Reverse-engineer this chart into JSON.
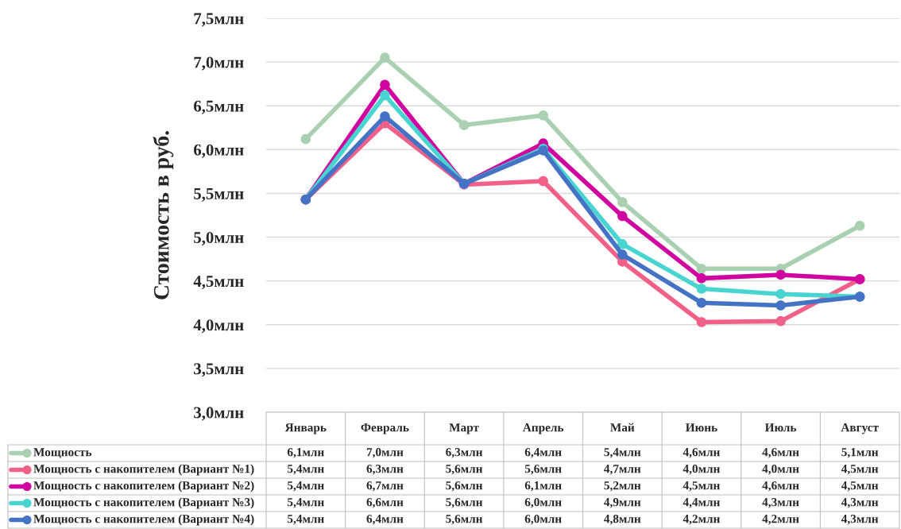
{
  "chart_data": {
    "type": "line",
    "ylabel": "Стоимость в руб.",
    "categories": [
      "Январь",
      "Февраль",
      "Март",
      "Апрель",
      "Май",
      "Июнь",
      "Июль",
      "Август"
    ],
    "series": [
      {
        "name": "Мощность",
        "color": "#a9d0b0",
        "values": [
          6.12,
          7.05,
          6.28,
          6.39,
          5.4,
          4.64,
          4.64,
          5.13
        ],
        "value_labels": [
          "6,1млн",
          "7,0млн",
          "6,3млн",
          "6,4млн",
          "5,4млн",
          "4,6млн",
          "4,6млн",
          "5,1млн"
        ]
      },
      {
        "name": "Мощность с накопителем (Вариант №1)",
        "color": "#f06088",
        "values": [
          5.43,
          6.3,
          5.6,
          5.64,
          4.72,
          4.03,
          4.04,
          4.52
        ],
        "value_labels": [
          "5,4млн",
          "6,3млн",
          "5,6млн",
          "5,6млн",
          "4,7млн",
          "4,0млн",
          "4,0млн",
          "4,5млн"
        ]
      },
      {
        "name": "Мощность с накопителем (Вариант №2)",
        "color": "#d0049e",
        "values": [
          5.43,
          6.74,
          5.61,
          6.07,
          5.24,
          4.53,
          4.57,
          4.52
        ],
        "value_labels": [
          "5,4млн",
          "6,7млн",
          "5,6млн",
          "6,1млн",
          "5,2млн",
          "4,5млн",
          "4,6млн",
          "4,5млн"
        ]
      },
      {
        "name": "Мощность с накопителем (Вариант №3)",
        "color": "#48d4d0",
        "values": [
          5.43,
          6.62,
          5.61,
          6.01,
          4.92,
          4.41,
          4.35,
          4.32
        ],
        "value_labels": [
          "5,4млн",
          "6,6млн",
          "5,6млн",
          "6,0млн",
          "4,9млн",
          "4,4млн",
          "4,3млн",
          "4,3млн"
        ]
      },
      {
        "name": "Мощность с накопителем (Вариант №4)",
        "color": "#4472c4",
        "values": [
          5.43,
          6.38,
          5.61,
          5.99,
          4.8,
          4.25,
          4.22,
          4.32
        ],
        "value_labels": [
          "5,4млн",
          "6,4млн",
          "5,6млн",
          "6,0млн",
          "4,8млн",
          "4,2млн",
          "4,2млн",
          "4,3млн"
        ]
      }
    ],
    "ylim": [
      3.0,
      7.5
    ],
    "yticks": [
      {
        "value": 3.0,
        "label": "3,0млн"
      },
      {
        "value": 3.5,
        "label": "3,5млн"
      },
      {
        "value": 4.0,
        "label": "4,0млн"
      },
      {
        "value": 4.5,
        "label": "4,5млн"
      },
      {
        "value": 5.0,
        "label": "5,0млн"
      },
      {
        "value": 5.5,
        "label": "5,5млн"
      },
      {
        "value": 6.0,
        "label": "6,0млн"
      },
      {
        "value": 6.5,
        "label": "6,5млн"
      },
      {
        "value": 7.0,
        "label": "7,0млн"
      },
      {
        "value": 7.5,
        "label": "7,5млн"
      }
    ],
    "grid": "y",
    "marker": "circle",
    "line_style": "solid",
    "legend": "bottom"
  }
}
